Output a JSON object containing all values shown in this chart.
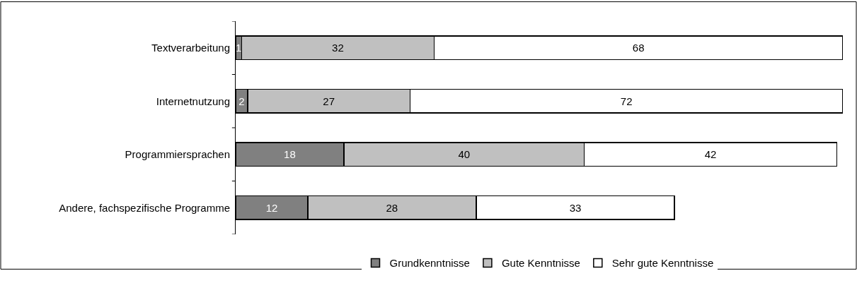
{
  "chart_data": {
    "type": "bar",
    "orientation": "horizontal",
    "stacked": true,
    "data_labels": true,
    "legend": "bottom",
    "tick_labels": "y",
    "categories": [
      "Textverarbeitung",
      "Internetnutzung",
      "Programmiersprachen",
      "Andere, fachspezifische Programme"
    ],
    "series": [
      {
        "name": "Grundkenntnisse",
        "color": "#808080",
        "values": [
          1,
          2,
          18,
          12
        ]
      },
      {
        "name": "Gute Kenntnisse",
        "color": "#c0c0c0",
        "values": [
          32,
          27,
          40,
          28
        ]
      },
      {
        "name": "Sehr gute Kenntnisse",
        "color": "#ffffff",
        "values": [
          68,
          72,
          42,
          33
        ]
      }
    ]
  }
}
